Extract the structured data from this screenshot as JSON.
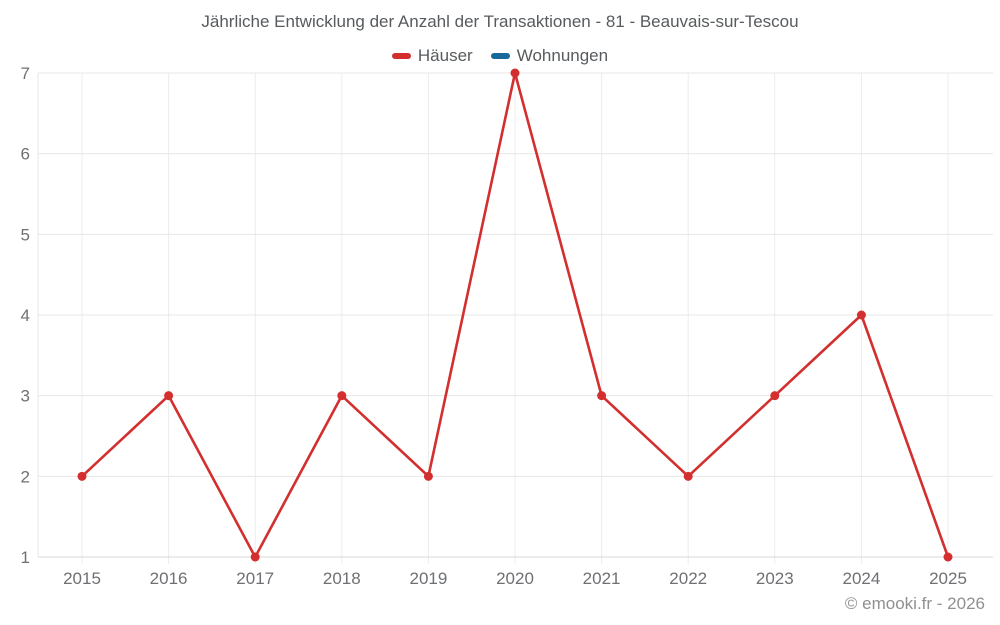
{
  "title": "Jährliche Entwicklung der Anzahl der Transaktionen - 81 - Beauvais-sur-Tescou",
  "legend": [
    {
      "label": "Häuser",
      "color": "#d32f2f"
    },
    {
      "label": "Wohnungen",
      "color": "#17699c"
    }
  ],
  "footer": "© emooki.fr - 2026",
  "colors": {
    "grid_horizontal": "#e7e7e7",
    "grid_vertical": "#ececec",
    "axis_baseline": "#d9d9d9",
    "tick_label": "#6e7073"
  },
  "chart_data": {
    "type": "line",
    "title": "Jährliche Entwicklung der Anzahl der Transaktionen - 81 - Beauvais-sur-Tescou",
    "categories": [
      "2015",
      "2016",
      "2017",
      "2018",
      "2019",
      "2020",
      "2021",
      "2022",
      "2023",
      "2024",
      "2025"
    ],
    "series": [
      {
        "name": "Häuser",
        "color": "#d32f2f",
        "values": [
          2,
          3,
          1,
          3,
          2,
          7,
          3,
          2,
          3,
          4,
          1
        ]
      },
      {
        "name": "Wohnungen",
        "color": "#17699c",
        "values": []
      }
    ],
    "xlabel": "",
    "ylabel": "",
    "ylim": [
      1,
      7
    ],
    "yticks": [
      1,
      2,
      3,
      4,
      5,
      6,
      7
    ],
    "grid": true,
    "legend_position": "top"
  }
}
